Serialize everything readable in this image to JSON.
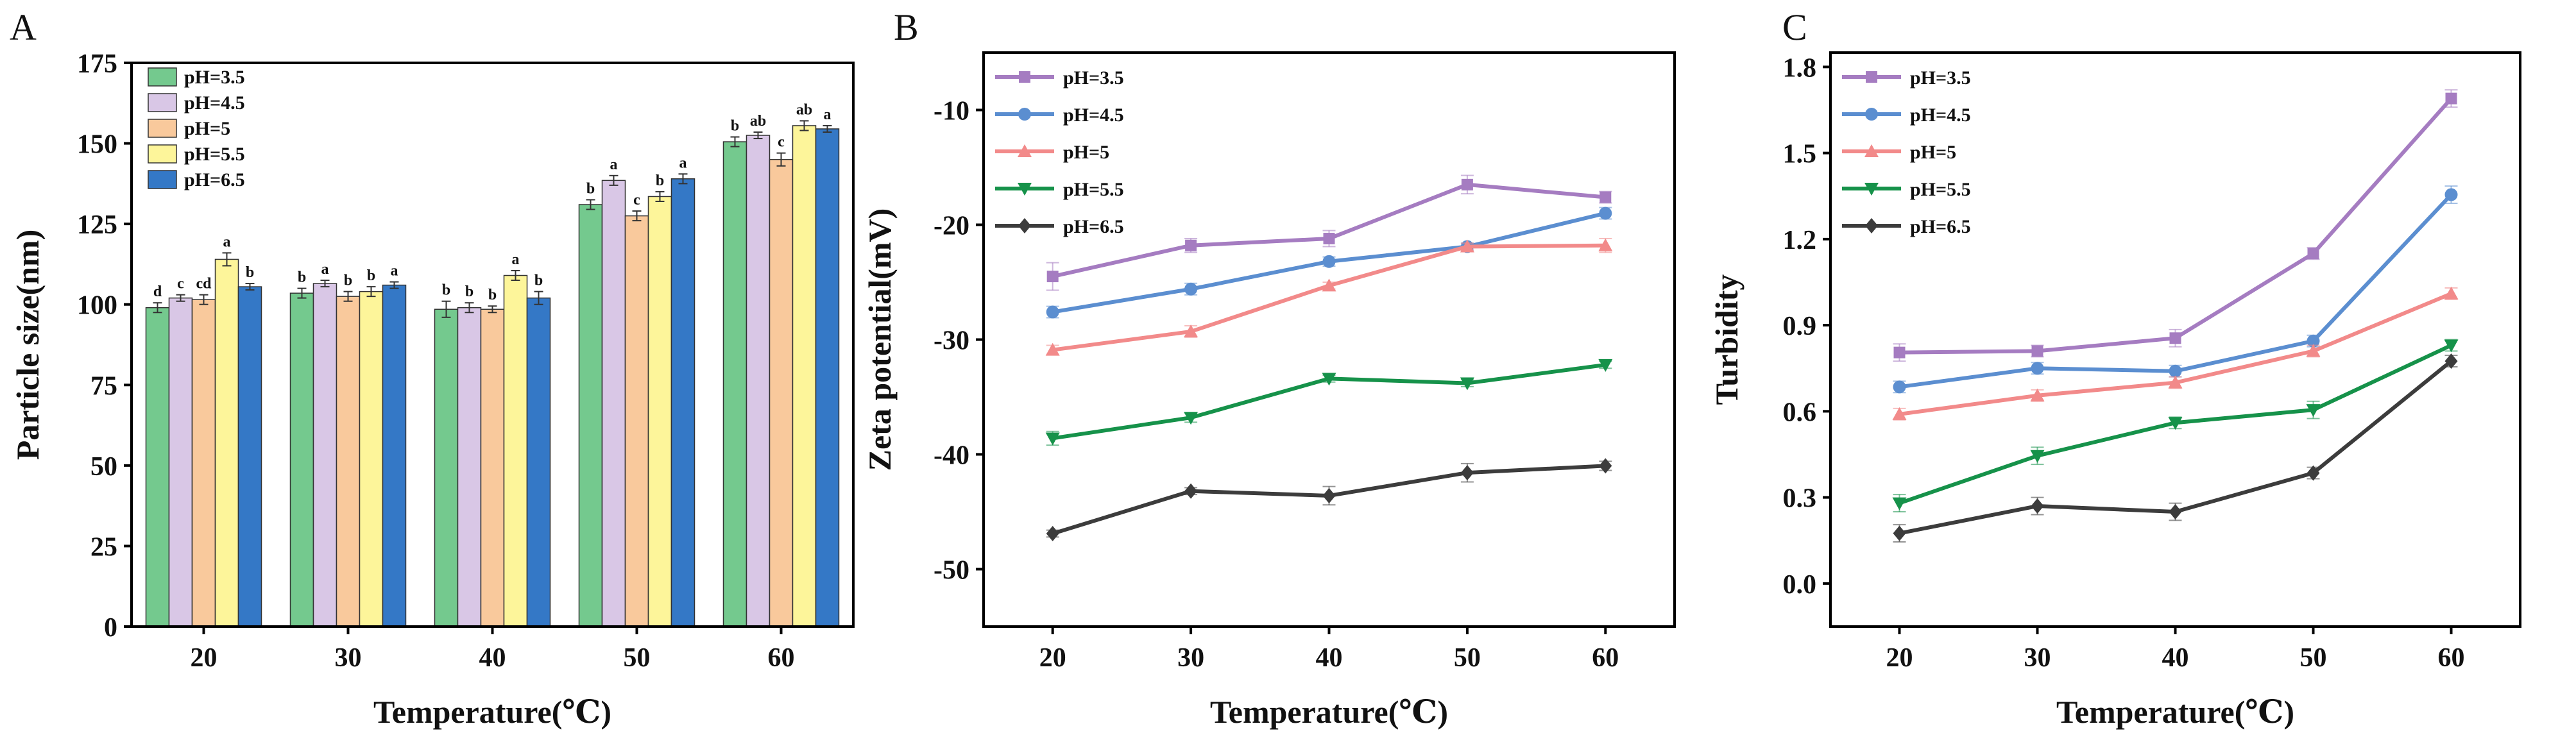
{
  "colors": {
    "pH=3.5": "#a57cc1",
    "pH=4.5": "#5b8ed0",
    "pH=5": "#f28a8a",
    "pH=5.5": "#16924a",
    "pH=6.5": "#3c3c3c",
    "bar_fill": [
      "#74c98e",
      "#d9c7e6",
      "#f9c99c",
      "#fdf59a",
      "#3478c6"
    ]
  },
  "chart_data": [
    {
      "panel": "A",
      "type": "bar",
      "xlabel": "Temperature(℃)",
      "ylabel": "Particle size(nm)",
      "ylim": [
        0,
        175
      ],
      "yticks": [
        0,
        25,
        50,
        75,
        100,
        125,
        150,
        175
      ],
      "categories": [
        "20",
        "30",
        "40",
        "50",
        "60"
      ],
      "legend": "top-left",
      "series": [
        {
          "name": "pH=3.5",
          "values": [
            99,
            103.5,
            98.5,
            131,
            150.5
          ],
          "errors": [
            1.5,
            1.5,
            2.5,
            1.5,
            1.5
          ],
          "labels": [
            "d",
            "b",
            "b",
            "b",
            "b"
          ]
        },
        {
          "name": "pH=4.5",
          "values": [
            102,
            106.5,
            99,
            138.5,
            152.5
          ],
          "errors": [
            1,
            1,
            1.5,
            1.5,
            1
          ],
          "labels": [
            "c",
            "a",
            "b",
            "a",
            "ab"
          ]
        },
        {
          "name": "pH=5",
          "values": [
            101.5,
            102.5,
            98.5,
            127.5,
            145
          ],
          "errors": [
            1.5,
            1.5,
            1,
            1.5,
            2
          ],
          "labels": [
            "cd",
            "b",
            "b",
            "c",
            "c"
          ]
        },
        {
          "name": "pH=5.5",
          "values": [
            114,
            104,
            109,
            133.5,
            155.5
          ],
          "errors": [
            2,
            1.5,
            1.5,
            1.5,
            1.5
          ],
          "labels": [
            "a",
            "b",
            "a",
            "b",
            "ab"
          ]
        },
        {
          "name": "pH=6.5",
          "values": [
            105.5,
            106,
            102,
            139,
            154.5
          ],
          "errors": [
            1,
            1,
            2,
            1.5,
            1
          ],
          "labels": [
            "b",
            "a",
            "b",
            "a",
            "a"
          ]
        }
      ]
    },
    {
      "panel": "B",
      "type": "line",
      "xlabel": "Temperature(℃)",
      "ylabel": "Zeta potential(mV)",
      "xlim": [
        15,
        65
      ],
      "ylim": [
        -55,
        -5
      ],
      "xticks": [
        20,
        30,
        40,
        50,
        60
      ],
      "yticks": [
        -50,
        -40,
        -30,
        -20,
        -10
      ],
      "legend": "top-left",
      "x": [
        20,
        30,
        40,
        50,
        60
      ],
      "series": [
        {
          "name": "pH=3.5",
          "marker": "square",
          "values": [
            -24.5,
            -21.8,
            -21.2,
            -16.5,
            -17.6
          ],
          "errors": [
            1.2,
            0.6,
            0.7,
            0.8,
            0.5
          ]
        },
        {
          "name": "pH=4.5",
          "marker": "circle",
          "values": [
            -27.6,
            -25.6,
            -23.2,
            -21.9,
            -19
          ],
          "errors": [
            0.5,
            0.5,
            0.4,
            0.3,
            0.5
          ]
        },
        {
          "name": "pH=5",
          "marker": "triangle-up",
          "values": [
            -30.9,
            -29.3,
            -25.3,
            -21.9,
            -21.8
          ],
          "errors": [
            0.4,
            0.5,
            0.3,
            0.3,
            0.6
          ]
        },
        {
          "name": "pH=5.5",
          "marker": "triangle-down",
          "values": [
            -38.6,
            -36.8,
            -33.4,
            -33.8,
            -32.2
          ],
          "errors": [
            0.6,
            0.4,
            0.3,
            0.3,
            0.3
          ]
        },
        {
          "name": "pH=6.5",
          "marker": "diamond",
          "values": [
            -46.9,
            -43.2,
            -43.6,
            -41.6,
            -41
          ],
          "errors": [
            0.3,
            0.3,
            0.8,
            0.8,
            0.4
          ]
        }
      ]
    },
    {
      "panel": "C",
      "type": "line",
      "xlabel": "Temperature(℃)",
      "ylabel": "Turbidity",
      "xlim": [
        15,
        65
      ],
      "ylim": [
        -0.15,
        1.85
      ],
      "xticks": [
        20,
        30,
        40,
        50,
        60
      ],
      "yticks": [
        0.0,
        0.3,
        0.6,
        0.9,
        1.2,
        1.5,
        1.8
      ],
      "legend": "top-left",
      "x": [
        20,
        30,
        40,
        50,
        60
      ],
      "series": [
        {
          "name": "pH=3.5",
          "marker": "square",
          "values": [
            0.805,
            0.81,
            0.855,
            1.15,
            1.69
          ],
          "errors": [
            0.03,
            0.02,
            0.03,
            0.02,
            0.03
          ]
        },
        {
          "name": "pH=4.5",
          "marker": "circle",
          "values": [
            0.685,
            0.75,
            0.74,
            0.845,
            1.355
          ],
          "errors": [
            0.02,
            0.02,
            0.02,
            0.02,
            0.03
          ]
        },
        {
          "name": "pH=5",
          "marker": "triangle-up",
          "values": [
            0.59,
            0.655,
            0.7,
            0.81,
            1.01
          ],
          "errors": [
            0.02,
            0.02,
            0.02,
            0.02,
            0.02
          ]
        },
        {
          "name": "pH=5.5",
          "marker": "triangle-down",
          "values": [
            0.28,
            0.445,
            0.56,
            0.605,
            0.83
          ],
          "errors": [
            0.03,
            0.03,
            0.02,
            0.03,
            0.02
          ]
        },
        {
          "name": "pH=6.5",
          "marker": "diamond",
          "values": [
            0.175,
            0.27,
            0.25,
            0.385,
            0.775
          ],
          "errors": [
            0.03,
            0.03,
            0.03,
            0.02,
            0.02
          ]
        }
      ]
    }
  ]
}
